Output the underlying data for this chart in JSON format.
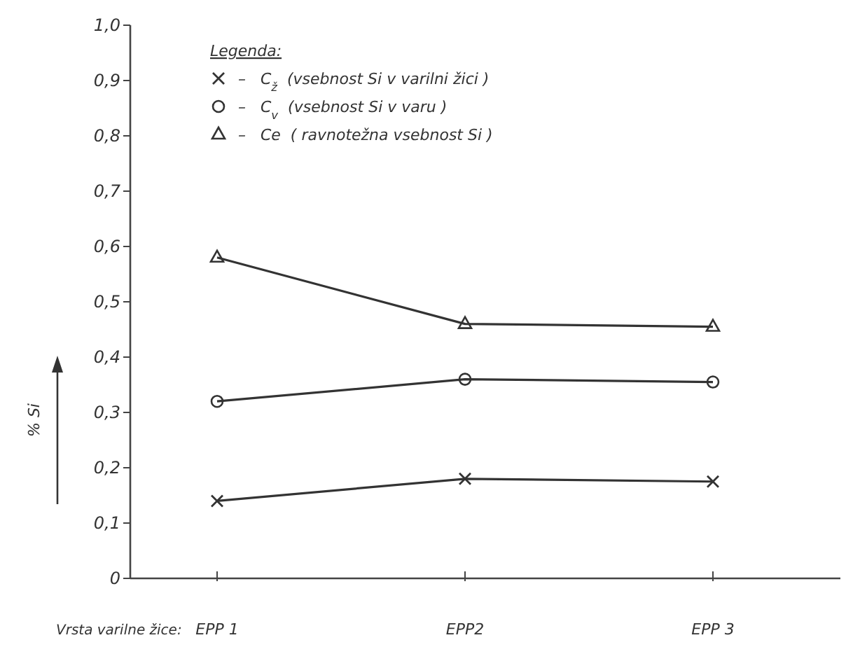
{
  "chart_data": {
    "type": "line",
    "xlabel": "Vrsta varilne žice:",
    "ylabel": "% Si",
    "legend_title": "Legenda:",
    "legend": "top left",
    "categories": [
      "EPP 1",
      "EPP2",
      "EPP 3"
    ],
    "series": [
      {
        "name": "–   C$_{ž}$  (vsebnost Si v varilni žici )",
        "color": "#333333",
        "marker": "cross",
        "values": [
          0.14,
          0.18,
          0.175
        ]
      },
      {
        "name": "–   C$_{v}$  (vsebnost Si v varu )",
        "color": "#333333",
        "marker": "circle",
        "values": [
          0.32,
          0.36,
          0.355
        ]
      },
      {
        "name": "–   Ce  ( ravnotežna vsebnost Si )",
        "color": "#333333",
        "marker": "triangle",
        "values": [
          0.58,
          0.46,
          0.455
        ]
      }
    ],
    "ylim": [
      0,
      1.0
    ],
    "yticks": [
      {
        "value": 0,
        "label": "0"
      },
      {
        "value": 0.1,
        "label": "0,1"
      },
      {
        "value": 0.2,
        "label": "0,2"
      },
      {
        "value": 0.3,
        "label": "0,3"
      },
      {
        "value": 0.4,
        "label": "0,4"
      },
      {
        "value": 0.5,
        "label": "0,5"
      },
      {
        "value": 0.6,
        "label": "0,6"
      },
      {
        "value": 0.7,
        "label": "0,7"
      },
      {
        "value": 0.8,
        "label": "0,8"
      },
      {
        "value": 0.9,
        "label": "0,9"
      },
      {
        "value": 1.0,
        "label": "1,0"
      }
    ],
    "grid": false
  }
}
